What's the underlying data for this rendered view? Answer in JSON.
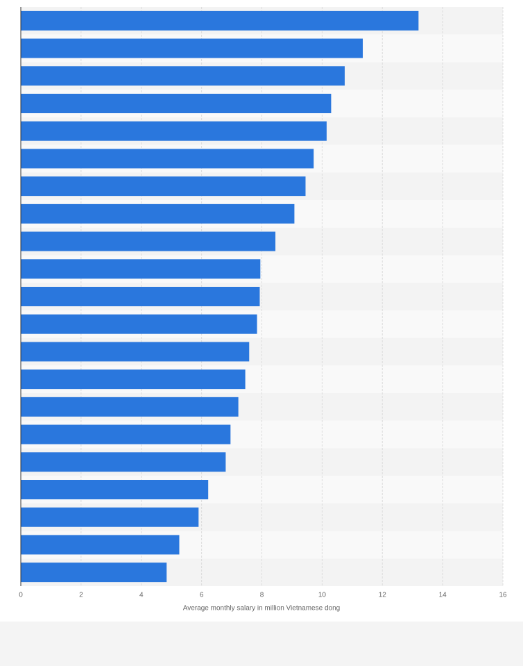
{
  "chart_data": {
    "type": "bar",
    "orientation": "horizontal",
    "x_label": "Average monthly salary in million Vietnamese dong",
    "categories": [
      null,
      null,
      null,
      null,
      null,
      null,
      null,
      null,
      null,
      null,
      null,
      null,
      null,
      null,
      null,
      null,
      null,
      null,
      null,
      null,
      null
    ],
    "values": [
      13.2,
      11.35,
      10.75,
      10.3,
      10.15,
      9.72,
      9.45,
      9.08,
      8.45,
      7.95,
      7.93,
      7.84,
      7.58,
      7.45,
      7.22,
      6.96,
      6.8,
      6.22,
      5.9,
      5.26,
      4.84
    ],
    "color": "#2a77dd",
    "xlim": [
      0,
      16
    ],
    "xticks": [
      0,
      2,
      4,
      6,
      8,
      10,
      12,
      14,
      16
    ],
    "grid": true
  }
}
